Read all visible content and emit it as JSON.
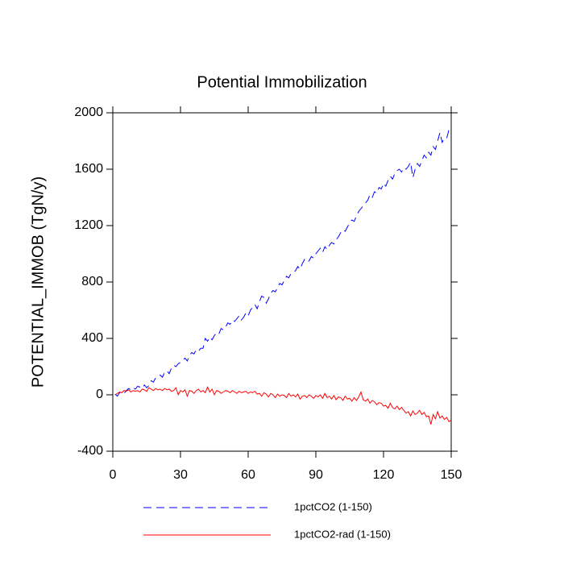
{
  "chart_data": {
    "type": "line",
    "title": "Potential Immobilization",
    "y_label": "POTENTIAL_IMMOB  (TgN/y)",
    "x": [
      1,
      2,
      3,
      4,
      5,
      6,
      7,
      8,
      9,
      10,
      11,
      12,
      13,
      14,
      15,
      16,
      17,
      18,
      19,
      20,
      21,
      22,
      23,
      24,
      25,
      26,
      27,
      28,
      29,
      30,
      31,
      32,
      33,
      34,
      35,
      36,
      37,
      38,
      39,
      40,
      41,
      42,
      43,
      44,
      45,
      46,
      47,
      48,
      49,
      50,
      51,
      52,
      53,
      54,
      55,
      56,
      57,
      58,
      59,
      60,
      61,
      62,
      63,
      64,
      65,
      66,
      67,
      68,
      69,
      70,
      71,
      72,
      73,
      74,
      75,
      76,
      77,
      78,
      79,
      80,
      81,
      82,
      83,
      84,
      85,
      86,
      87,
      88,
      89,
      90,
      91,
      92,
      93,
      94,
      95,
      96,
      97,
      98,
      99,
      100,
      101,
      102,
      103,
      104,
      105,
      106,
      107,
      108,
      109,
      110,
      111,
      112,
      113,
      114,
      115,
      116,
      117,
      118,
      119,
      120,
      121,
      122,
      123,
      124,
      125,
      126,
      127,
      128,
      129,
      130,
      131,
      132,
      133,
      134,
      135,
      136,
      137,
      138,
      139,
      140,
      141,
      142,
      143,
      144,
      145,
      146,
      147,
      148,
      149,
      150
    ],
    "series": [
      {
        "name": "1pctCO2 (1-150)",
        "color": "#0000ff",
        "dash": true,
        "values": [
          5,
          -10,
          15,
          20,
          10,
          30,
          45,
          35,
          50,
          40,
          60,
          55,
          45,
          70,
          50,
          65,
          100,
          90,
          120,
          130,
          140,
          125,
          160,
          170,
          150,
          190,
          210,
          200,
          220,
          230,
          245,
          260,
          240,
          280,
          300,
          290,
          320,
          310,
          330,
          330,
          400,
          380,
          410,
          390,
          420,
          440,
          430,
          470,
          460,
          480,
          510,
          500,
          530,
          520,
          540,
          560,
          530,
          550,
          580,
          560,
          600,
          620,
          640,
          610,
          660,
          700,
          690,
          650,
          680,
          720,
          740,
          730,
          760,
          790,
          780,
          810,
          840,
          830,
          860,
          870,
          880,
          910,
          890,
          930,
          960,
          940,
          950,
          980,
          970,
          1000,
          1020,
          1040,
          1010,
          1050,
          1030,
          1060,
          1080,
          1070,
          1100,
          1120,
          1150,
          1170,
          1160,
          1190,
          1220,
          1240,
          1230,
          1270,
          1300,
          1320,
          1340,
          1360,
          1380,
          1420,
          1400,
          1440,
          1430,
          1470,
          1460,
          1500,
          1480,
          1520,
          1550,
          1530,
          1570,
          1590,
          1600,
          1580,
          1610,
          1600,
          1620,
          1650,
          1540,
          1600,
          1640,
          1620,
          1660,
          1700,
          1680,
          1720,
          1700,
          1760,
          1740,
          1800,
          1860,
          1790,
          1820,
          1820,
          1880,
          1850
        ]
      },
      {
        "name": "1pctCO2-rad (1-150)",
        "color": "#ff0000",
        "dash": false,
        "values": [
          0,
          10,
          20,
          15,
          30,
          25,
          35,
          20,
          30,
          25,
          30,
          20,
          40,
          35,
          25,
          50,
          40,
          30,
          45,
          35,
          40,
          30,
          45,
          35,
          40,
          25,
          30,
          50,
          0,
          30,
          20,
          35,
          -10,
          30,
          25,
          10,
          30,
          40,
          20,
          30,
          15,
          55,
          20,
          40,
          0,
          30,
          25,
          10,
          20,
          30,
          25,
          15,
          30,
          20,
          10,
          25,
          15,
          20,
          25,
          10,
          20,
          15,
          25,
          5,
          10,
          -10,
          15,
          5,
          -15,
          10,
          0,
          -20,
          5,
          -10,
          0,
          -5,
          -20,
          10,
          -10,
          0,
          -15,
          5,
          -30,
          -10,
          -5,
          -20,
          0,
          -10,
          -25,
          -5,
          -15,
          0,
          -25,
          10,
          -20,
          -10,
          -30,
          -5,
          -35,
          -15,
          -20,
          -40,
          -10,
          -30,
          -25,
          -45,
          -20,
          -40,
          -15,
          20,
          -35,
          -45,
          -30,
          -60,
          -40,
          -50,
          -70,
          -55,
          -60,
          -80,
          -75,
          -95,
          -60,
          -90,
          -100,
          -80,
          -105,
          -90,
          -110,
          -130,
          -120,
          -150,
          -115,
          -140,
          -130,
          -110,
          -140,
          -125,
          -155,
          -150,
          -210,
          -140,
          -170,
          -120,
          -165,
          -150,
          -175,
          -160,
          -190,
          -180
        ]
      }
    ],
    "xlim": [
      0,
      150
    ],
    "xticks": [
      0,
      30,
      60,
      90,
      120,
      150
    ],
    "ylim": [
      -400,
      2000
    ],
    "yticks": [
      -400,
      0,
      400,
      800,
      1200,
      1600,
      2000
    ]
  }
}
